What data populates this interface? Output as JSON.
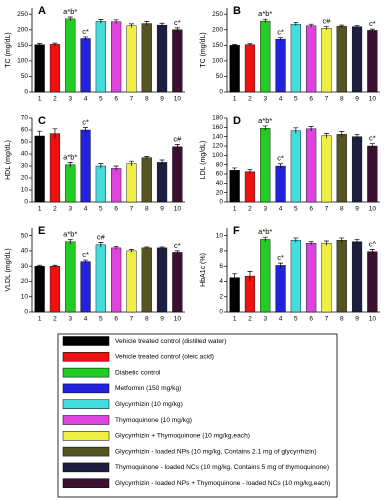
{
  "chart_data": [
    {
      "type": "bar",
      "panel": "A",
      "ylabel": "TC (mg/dL)",
      "categories": [
        "1",
        "2",
        "3",
        "4",
        "5",
        "6",
        "7",
        "8",
        "9",
        "10"
      ],
      "values": [
        152,
        153,
        235,
        172,
        227,
        226,
        213,
        220,
        215,
        200
      ],
      "errors": [
        4,
        4,
        6,
        5,
        6,
        6,
        6,
        7,
        6,
        6
      ],
      "annotations": [
        null,
        null,
        "a*b*",
        "c*",
        null,
        null,
        null,
        null,
        null,
        "c*"
      ],
      "ylim": [
        0,
        270
      ],
      "yticks": [
        0,
        50,
        100,
        150,
        200,
        250
      ]
    },
    {
      "type": "bar",
      "panel": "B",
      "ylabel": "TC (mg/dL)",
      "categories": [
        "1",
        "2",
        "3",
        "4",
        "5",
        "6",
        "7",
        "8",
        "9",
        "10"
      ],
      "values": [
        150,
        152,
        228,
        170,
        218,
        213,
        205,
        211,
        210,
        198
      ],
      "errors": [
        3,
        3,
        6,
        5,
        6,
        5,
        5,
        4,
        4,
        4
      ],
      "annotations": [
        null,
        null,
        "a*b*",
        "c*",
        null,
        null,
        "c#",
        null,
        null,
        "c*"
      ],
      "ylim": [
        0,
        270
      ],
      "yticks": [
        0,
        50,
        100,
        150,
        200,
        250
      ]
    },
    {
      "type": "bar",
      "panel": "C",
      "ylabel": "HDL (mg/dL)",
      "categories": [
        "1",
        "2",
        "3",
        "4",
        "5",
        "6",
        "7",
        "8",
        "9",
        "10"
      ],
      "values": [
        55,
        57,
        31,
        60,
        30,
        28,
        32,
        37,
        33,
        46
      ],
      "errors": [
        4,
        4,
        2,
        2,
        2,
        2,
        2,
        1,
        2,
        2
      ],
      "annotations": [
        null,
        null,
        "a*b*",
        "c*",
        null,
        null,
        null,
        null,
        null,
        "c#"
      ],
      "ylim": [
        0,
        70
      ],
      "yticks": [
        0,
        10,
        20,
        30,
        40,
        50,
        60,
        70
      ]
    },
    {
      "type": "bar",
      "panel": "D",
      "ylabel": "LDL (mg/dL)",
      "categories": [
        "1",
        "2",
        "3",
        "4",
        "5",
        "6",
        "7",
        "8",
        "9",
        "10"
      ],
      "values": [
        68,
        65,
        158,
        77,
        153,
        157,
        142,
        145,
        140,
        120
      ],
      "errors": [
        5,
        5,
        5,
        5,
        6,
        5,
        5,
        6,
        5,
        5
      ],
      "annotations": [
        null,
        null,
        "a*b*",
        "c*",
        null,
        null,
        null,
        null,
        null,
        "c*"
      ],
      "ylim": [
        0,
        180
      ],
      "yticks": [
        0,
        20,
        40,
        60,
        80,
        100,
        120,
        140,
        160,
        180
      ]
    },
    {
      "type": "bar",
      "panel": "E",
      "ylabel": "VLDL (mg/dL)",
      "categories": [
        "1",
        "2",
        "3",
        "4",
        "5",
        "6",
        "7",
        "8",
        "9",
        "10"
      ],
      "values": [
        30,
        30,
        46,
        33,
        44,
        42,
        40,
        42,
        42,
        39
      ],
      "errors": [
        0.6,
        0.6,
        1.5,
        1,
        1.5,
        1,
        1,
        0.6,
        0.6,
        1
      ],
      "annotations": [
        null,
        null,
        "a*b*",
        "c*",
        "c#",
        null,
        null,
        null,
        null,
        "c*"
      ],
      "ylim": [
        0,
        55
      ],
      "yticks": [
        0,
        10,
        20,
        30,
        40,
        50
      ]
    },
    {
      "type": "bar",
      "panel": "F",
      "ylabel": "HbA1c (%)",
      "categories": [
        "1",
        "2",
        "3",
        "4",
        "5",
        "6",
        "7",
        "8",
        "9",
        "10"
      ],
      "values": [
        4.5,
        4.7,
        9.5,
        6.1,
        9.4,
        9.0,
        9.0,
        9.4,
        9.2,
        7.9
      ],
      "errors": [
        0.5,
        0.6,
        0.3,
        0.3,
        0.3,
        0.2,
        0.3,
        0.3,
        0.3,
        0.3
      ],
      "annotations": [
        null,
        null,
        "a*b*",
        "c*",
        null,
        null,
        null,
        null,
        null,
        "c^"
      ],
      "ylim": [
        0,
        11
      ],
      "yticks": [
        0,
        2,
        4,
        6,
        8,
        10
      ]
    }
  ],
  "legend": [
    {
      "label": "Vehicle treated control (distilled water)",
      "color": "#000000"
    },
    {
      "label": "Vehicle treated control (oleic acid)",
      "color": "#ee1111"
    },
    {
      "label": "Diabetic control",
      "color": "#22cc22"
    },
    {
      "label": "Metformin (150 mg/kg)",
      "color": "#2222dd"
    },
    {
      "label": "Glycyrrhizin (10 mg/kg)",
      "color": "#44dddd"
    },
    {
      "label": "Thymoquinone (10 mg/kg)",
      "color": "#dd44dd"
    },
    {
      "label": "Glycyrrhizin + Thymoquinone (10 mg/kg,each)",
      "color": "#eeee44"
    },
    {
      "label": "Glycyrrhizin - loaded NPs (10 mg/kg, Contains 2.1 mg of glycyrrhizin)",
      "color": "#555522"
    },
    {
      "label": "Thymoquinone - loaded NCs (10 mg/kg, Contains 5 mg of thymoquinone)",
      "color": "#1e1e40"
    },
    {
      "label": "Glycyrrhizin - loaded NPs + Thymoquinone - loaded NCs (10 mg/kg,each)",
      "color": "#3d1030"
    }
  ]
}
